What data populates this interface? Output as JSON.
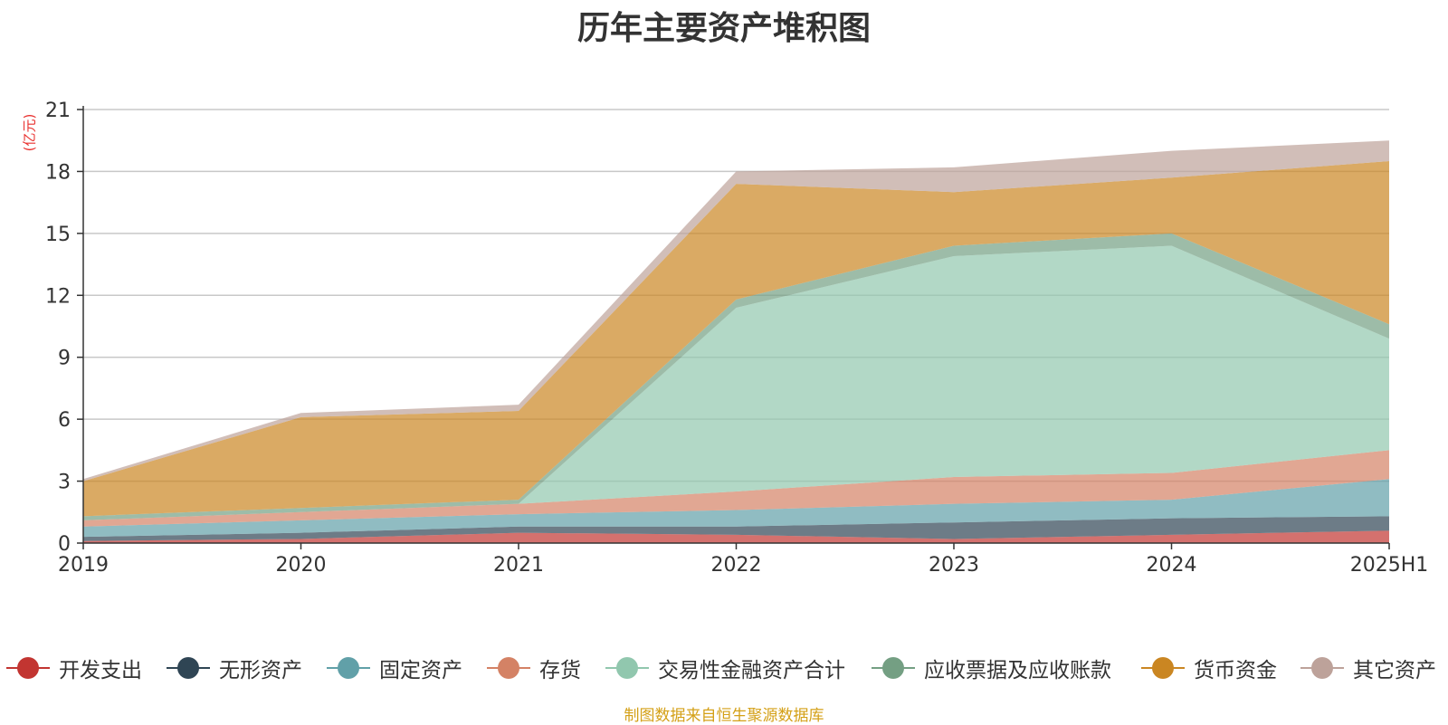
{
  "chart_data": {
    "type": "area",
    "stacked": true,
    "title": "历年主要资产堆积图",
    "ylabel": "(亿元)",
    "categories": [
      "2019",
      "2020",
      "2021",
      "2022",
      "2023",
      "2024",
      "2025H1"
    ],
    "ylim": [
      0,
      21
    ],
    "yticks": [
      "0",
      "3",
      "6",
      "9",
      "12",
      "15",
      "18",
      "21"
    ],
    "grid": true,
    "legend_position": "bottom",
    "series": [
      {
        "name": "开发支出",
        "color": "#c23531",
        "values": [
          0.1,
          0.2,
          0.5,
          0.4,
          0.2,
          0.4,
          0.6
        ]
      },
      {
        "name": "无形资产",
        "color": "#2f4554",
        "values": [
          0.2,
          0.3,
          0.3,
          0.4,
          0.8,
          0.8,
          0.7
        ]
      },
      {
        "name": "固定资产",
        "color": "#61a0a8",
        "values": [
          0.5,
          0.6,
          0.6,
          0.8,
          0.9,
          0.9,
          1.8
        ]
      },
      {
        "name": "存货",
        "color": "#d48265",
        "values": [
          0.3,
          0.4,
          0.5,
          0.9,
          1.3,
          1.3,
          1.4
        ]
      },
      {
        "name": "交易性金融资产合计",
        "color": "#91c7ae",
        "values": [
          0.0,
          0.0,
          0.0,
          8.9,
          10.7,
          11.0,
          5.4
        ]
      },
      {
        "name": "应收票据及应收账款",
        "color": "#749f83",
        "values": [
          0.2,
          0.2,
          0.2,
          0.4,
          0.5,
          0.6,
          0.7
        ]
      },
      {
        "name": "货币资金",
        "color": "#ca8622",
        "values": [
          1.7,
          4.4,
          4.3,
          5.6,
          2.6,
          2.7,
          7.9
        ]
      },
      {
        "name": "其它资产",
        "color": "#bda29a",
        "values": [
          0.1,
          0.2,
          0.3,
          0.6,
          1.2,
          1.3,
          1.0
        ]
      }
    ]
  },
  "unit_label": "(亿元)",
  "source_note": "制图数据来自恒生聚源数据库"
}
